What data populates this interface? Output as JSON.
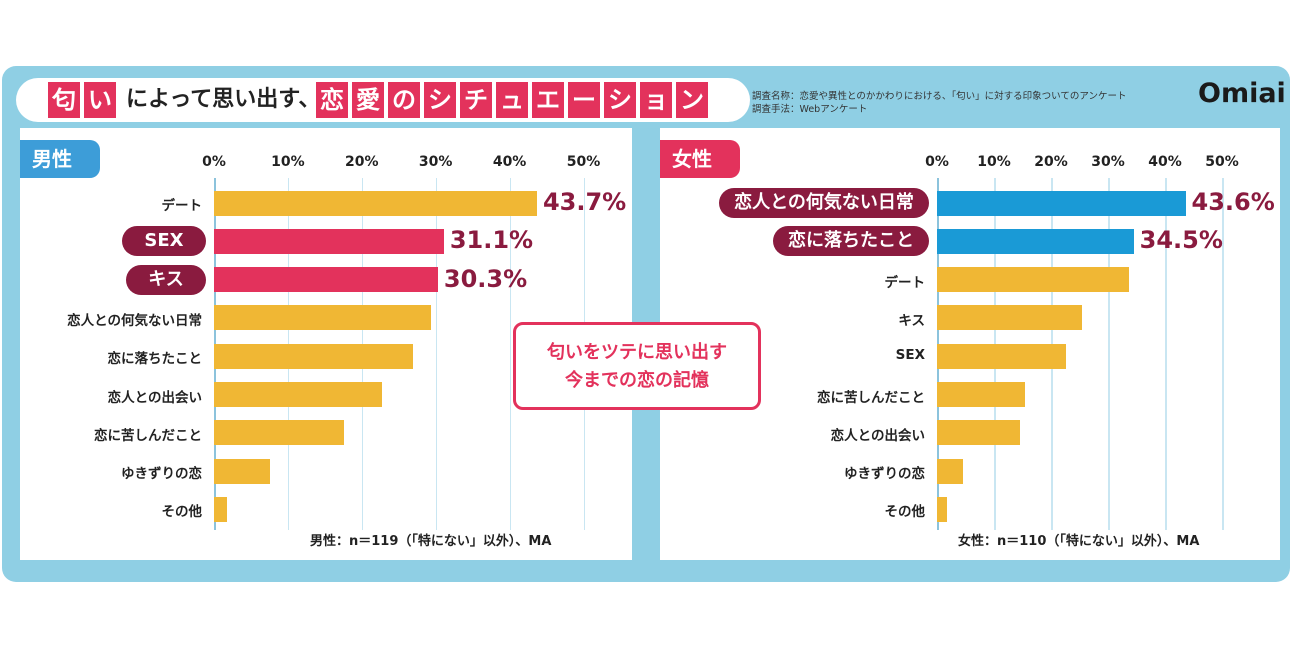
{
  "title": {
    "parts": [
      {
        "text": "匂",
        "style": "box"
      },
      {
        "text": "い",
        "style": "box"
      },
      {
        "text": "によって思い出す、",
        "style": "plain"
      },
      {
        "text": "恋",
        "style": "box"
      },
      {
        "text": "愛",
        "style": "box"
      },
      {
        "text": "の",
        "style": "box"
      },
      {
        "text": "シ",
        "style": "box"
      },
      {
        "text": "チ",
        "style": "box"
      },
      {
        "text": "ュ",
        "style": "box"
      },
      {
        "text": "エ",
        "style": "box"
      },
      {
        "text": "ー",
        "style": "box"
      },
      {
        "text": "シ",
        "style": "box"
      },
      {
        "text": "ョ",
        "style": "box"
      },
      {
        "text": "ン",
        "style": "box"
      }
    ]
  },
  "meta": {
    "line1": "調査名称：恋愛や異性とのかかわりにおける、「匂い」に対する印象ついてのアンケート",
    "line2": "調査手法：Webアンケート"
  },
  "brand": "Omiai",
  "callout": {
    "line1": "匂いをツテに思い出す",
    "line2": "今までの恋の記憶"
  },
  "colors": {
    "frame": "#8fcfe4",
    "pink": "#e3325c",
    "yellow": "#f0b734",
    "blue": "#1a9ad6",
    "maroon": "#8a1b3f"
  },
  "chart_data": [
    {
      "type": "bar",
      "orientation": "horizontal",
      "panel_label": "男性",
      "xlim": [
        0,
        50
      ],
      "ticks": [
        "0%",
        "10%",
        "20%",
        "30%",
        "40%",
        "50%"
      ],
      "note": "男性：n＝119（「特にない」以外）、MA",
      "categories": [
        "デート",
        "SEX",
        "キス",
        "恋人との何気ない日常",
        "恋に落ちたこと",
        "恋人との出会い",
        "恋に苦しんだこと",
        "ゆきずりの恋",
        "その他"
      ],
      "values": [
        43.7,
        31.1,
        30.3,
        29.4,
        26.9,
        22.7,
        17.6,
        7.6,
        1.7
      ],
      "highlight": [
        false,
        true,
        true,
        false,
        false,
        false,
        false,
        false,
        false
      ],
      "value_labels": [
        "43.7%",
        "31.1%",
        "30.3%",
        "",
        "",
        "",
        "",
        "",
        ""
      ]
    },
    {
      "type": "bar",
      "orientation": "horizontal",
      "panel_label": "女性",
      "xlim": [
        0,
        50
      ],
      "ticks": [
        "0%",
        "10%",
        "20%",
        "30%",
        "40%",
        "50%"
      ],
      "note": "女性：n＝110（「特にない」以外）、MA",
      "categories": [
        "恋人との何気ない日常",
        "恋に落ちたこと",
        "デート",
        "キス",
        "SEX",
        "恋に苦しんだこと",
        "恋人との出会い",
        "ゆきずりの恋",
        "その他"
      ],
      "values": [
        43.6,
        34.5,
        33.6,
        25.5,
        22.7,
        15.5,
        14.5,
        4.5,
        1.8
      ],
      "highlight": [
        true,
        true,
        false,
        false,
        false,
        false,
        false,
        false,
        false
      ],
      "value_labels": [
        "43.6%",
        "34.5%",
        "",
        "",
        "",
        "",
        "",
        "",
        ""
      ]
    }
  ]
}
